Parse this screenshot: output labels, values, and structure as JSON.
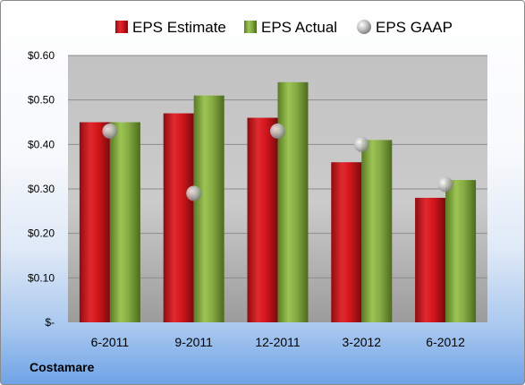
{
  "company": "Costamare",
  "colors": {
    "estimate": "#c0141b",
    "actual": "#7ea33c",
    "gaap": "#b8b8b8",
    "plot_bg": "#c7c7c7"
  },
  "chart_data": {
    "type": "bar",
    "categories": [
      "6-2011",
      "9-2011",
      "12-2011",
      "3-2012",
      "6-2012"
    ],
    "series": [
      {
        "name": "EPS Estimate",
        "kind": "bar",
        "values": [
          0.45,
          0.47,
          0.46,
          0.36,
          0.28
        ]
      },
      {
        "name": "EPS Actual",
        "kind": "bar",
        "values": [
          0.45,
          0.51,
          0.54,
          0.41,
          0.32
        ]
      },
      {
        "name": "EPS GAAP",
        "kind": "marker",
        "values": [
          0.43,
          0.29,
          0.43,
          0.4,
          0.31
        ]
      }
    ],
    "ylim": [
      0,
      0.6
    ],
    "yticks": [
      0,
      0.1,
      0.2,
      0.3,
      0.4,
      0.5,
      0.6
    ],
    "ytick_labels": [
      "$-",
      "$0.10",
      "$0.20",
      "$0.30",
      "$0.40",
      "$0.50",
      "$0.60"
    ],
    "grid": true,
    "legend_position": "top"
  }
}
